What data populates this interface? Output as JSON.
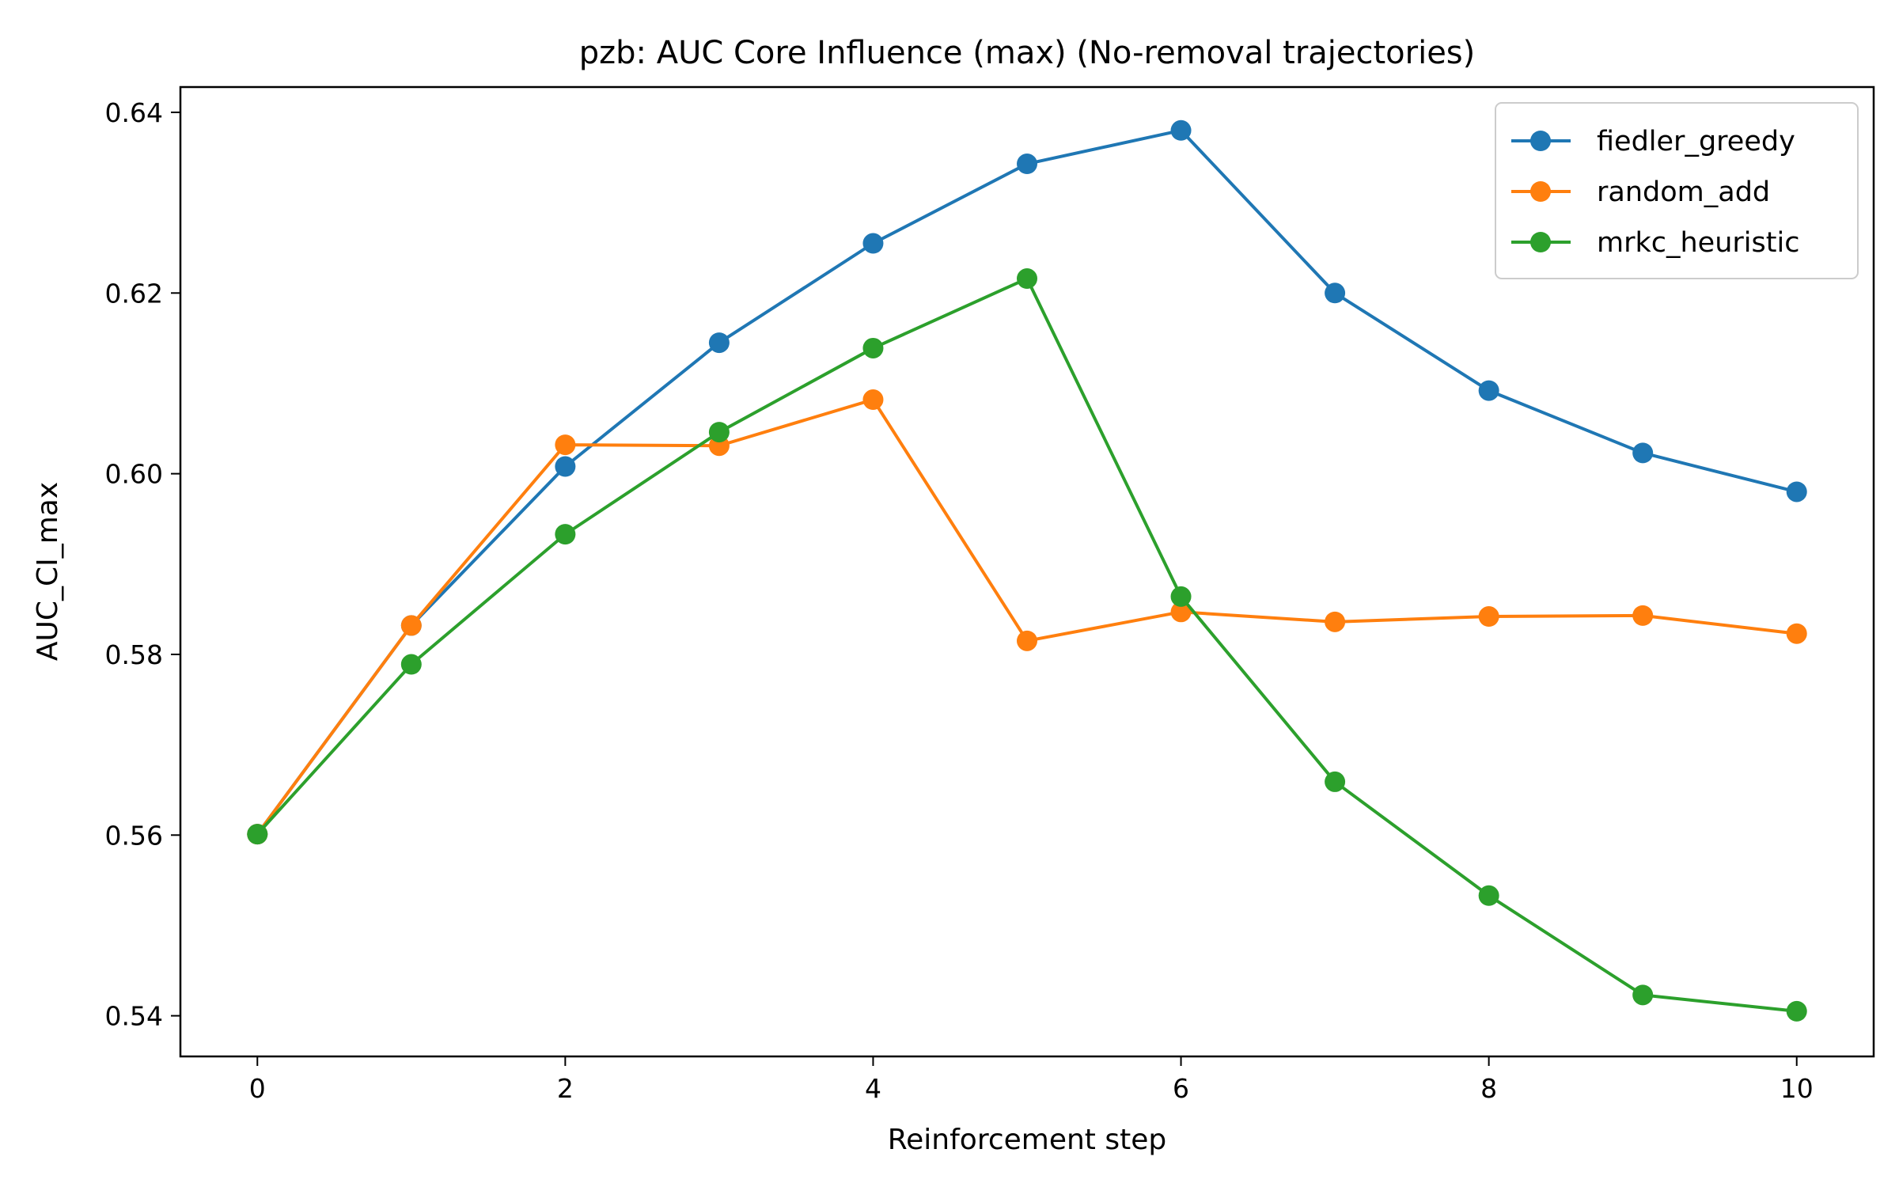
{
  "chart_data": {
    "type": "line",
    "title": "pzb: AUC Core Influence (max) (No-removal trajectories)",
    "xlabel": "Reinforcement step",
    "ylabel": "AUC_CI_max",
    "x": [
      0,
      1,
      2,
      3,
      4,
      5,
      6,
      7,
      8,
      9,
      10
    ],
    "xlim": [
      -0.5,
      10.5
    ],
    "ylim": [
      0.5355,
      0.6428
    ],
    "xticks": [
      0,
      2,
      4,
      6,
      8,
      10
    ],
    "xtick_labels": [
      "0",
      "2",
      "4",
      "6",
      "8",
      "10"
    ],
    "yticks": [
      0.54,
      0.56,
      0.58,
      0.6,
      0.62,
      0.64
    ],
    "ytick_labels": [
      "0.54",
      "0.56",
      "0.58",
      "0.60",
      "0.62",
      "0.64"
    ],
    "grid": false,
    "legend_position": "top-right",
    "series": [
      {
        "name": "fiedler_greedy",
        "color": "#1f77b4",
        "values": [
          0.5601,
          0.5832,
          0.6008,
          0.6145,
          0.6255,
          0.6343,
          0.638,
          0.62,
          0.6092,
          0.6023,
          0.598
        ]
      },
      {
        "name": "random_add",
        "color": "#ff7f0e",
        "values": [
          0.5601,
          0.5832,
          0.6032,
          0.6031,
          0.6082,
          0.5815,
          0.5847,
          0.5836,
          0.5842,
          0.5843,
          0.5823
        ]
      },
      {
        "name": "mrkc_heuristic",
        "color": "#2ca02c",
        "values": [
          0.5601,
          0.5789,
          0.5933,
          0.6046,
          0.6139,
          0.6216,
          0.5864,
          0.5659,
          0.5533,
          0.5423,
          0.5405
        ]
      }
    ]
  }
}
